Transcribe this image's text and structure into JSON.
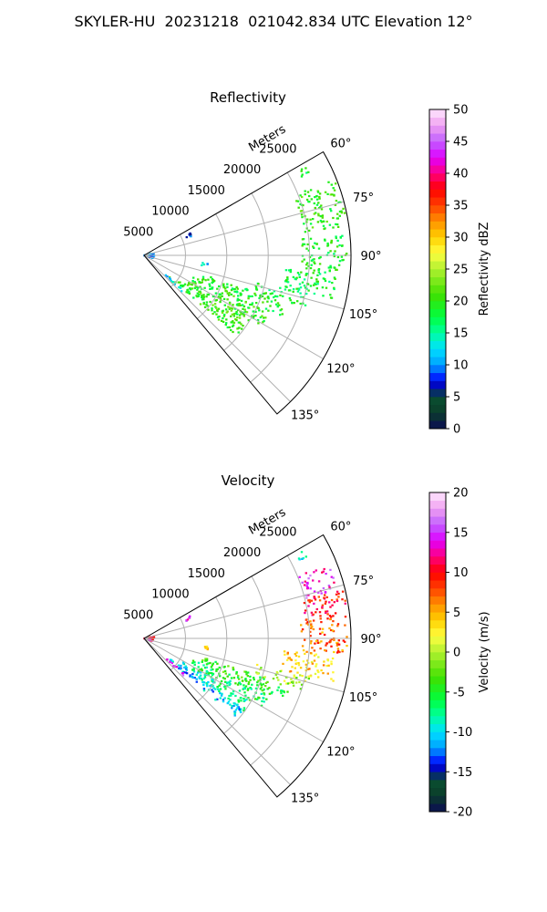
{
  "figure": {
    "title": "SKYLER-HU  20231218  021042.834 UTC Elevation 12°"
  },
  "chart_data": [
    {
      "type": "polar-sector",
      "title": "Reflectivity",
      "radial_label": "Meters",
      "radial_ticks": [
        5000,
        10000,
        15000,
        20000,
        25000
      ],
      "r_max": 25000,
      "azimuth_range_deg": [
        60,
        140
      ],
      "azimuth_ticks": [
        60,
        75,
        90,
        105,
        120,
        135
      ],
      "azimuth_tick_labels": [
        "60°",
        "75°",
        "90°",
        "105°",
        "120°",
        "135°"
      ],
      "grid": true,
      "colorbar": {
        "label": "Reflectivity dBZ",
        "min": 0,
        "max": 50,
        "ticks": [
          0,
          5,
          10,
          15,
          20,
          25,
          30,
          35,
          40,
          45,
          50
        ]
      },
      "echo_regions": [
        {
          "az": [
            61,
            64
          ],
          "r": [
            21000,
            22500
          ],
          "value": 18
        },
        {
          "az": [
            68,
            82
          ],
          "r": [
            19500,
            24800
          ],
          "value": 20
        },
        {
          "az": [
            84,
            95
          ],
          "r": [
            19000,
            24500
          ],
          "value": 19
        },
        {
          "az": [
            95,
            103
          ],
          "r": [
            17000,
            23500
          ],
          "value": 18
        },
        {
          "az": [
            103,
            108
          ],
          "r": [
            14000,
            20500
          ],
          "value": 18
        },
        {
          "az": [
            108,
            114
          ],
          "r": [
            7500,
            18500
          ],
          "value": 19
        },
        {
          "az": [
            114,
            121
          ],
          "r": [
            6500,
            16500
          ],
          "value": 20
        },
        {
          "az": [
            121,
            126
          ],
          "r": [
            5500,
            15000
          ],
          "value": 20
        },
        {
          "az": [
            126,
            131
          ],
          "r": [
            4000,
            14800
          ],
          "value": 20
        },
        {
          "az": [
            131,
            134
          ],
          "r": [
            3500,
            6500
          ],
          "value": 12
        },
        {
          "az": [
            64,
            68
          ],
          "r": [
            5500,
            6200
          ],
          "value": 9
        },
        {
          "az": [
            97,
            100
          ],
          "r": [
            7000,
            7800
          ],
          "value": 12
        },
        {
          "az": [
            75,
            108
          ],
          "r": [
            0,
            1200
          ],
          "value": 10
        }
      ]
    },
    {
      "type": "polar-sector",
      "title": "Velocity",
      "radial_label": "Meters",
      "radial_ticks": [
        5000,
        10000,
        15000,
        20000,
        25000
      ],
      "r_max": 25000,
      "azimuth_range_deg": [
        60,
        140
      ],
      "azimuth_ticks": [
        60,
        75,
        90,
        105,
        120,
        135
      ],
      "azimuth_tick_labels": [
        "60°",
        "75°",
        "90°",
        "105°",
        "120°",
        "135°"
      ],
      "grid": true,
      "colorbar": {
        "label": "Velocity (m/s)",
        "min": -20,
        "max": 20,
        "ticks": [
          -20,
          -15,
          -10,
          -5,
          0,
          5,
          10,
          15,
          20
        ]
      },
      "echo_regions": [
        {
          "az": [
            61,
            64
          ],
          "r": [
            21000,
            22500
          ],
          "value": -10
        },
        {
          "az": [
            68,
            76
          ],
          "r": [
            20000,
            24000
          ],
          "value": 14
        },
        {
          "az": [
            76,
            84
          ],
          "r": [
            19500,
            24800
          ],
          "value": 10
        },
        {
          "az": [
            84,
            95
          ],
          "r": [
            19000,
            24500
          ],
          "value": 7
        },
        {
          "az": [
            95,
            103
          ],
          "r": [
            17000,
            23500
          ],
          "value": 4
        },
        {
          "az": [
            103,
            108
          ],
          "r": [
            14000,
            20500
          ],
          "value": 0
        },
        {
          "az": [
            108,
            114
          ],
          "r": [
            7500,
            18500
          ],
          "value": -4
        },
        {
          "az": [
            114,
            121
          ],
          "r": [
            6500,
            16500
          ],
          "value": -6
        },
        {
          "az": [
            121,
            126
          ],
          "r": [
            5500,
            15000
          ],
          "value": -8
        },
        {
          "az": [
            126,
            131
          ],
          "r": [
            4000,
            14800
          ],
          "value": -11
        },
        {
          "az": [
            131,
            134
          ],
          "r": [
            3500,
            6500
          ],
          "value": 15
        },
        {
          "az": [
            64,
            68
          ],
          "r": [
            5500,
            6200
          ],
          "value": 14
        },
        {
          "az": [
            97,
            100
          ],
          "r": [
            7000,
            7800
          ],
          "value": 5
        },
        {
          "az": [
            75,
            108
          ],
          "r": [
            0,
            1200
          ],
          "value": 12
        }
      ]
    }
  ],
  "colors": {
    "grid": "#b0b0b0",
    "axis": "#000000",
    "background": "#ffffff"
  }
}
